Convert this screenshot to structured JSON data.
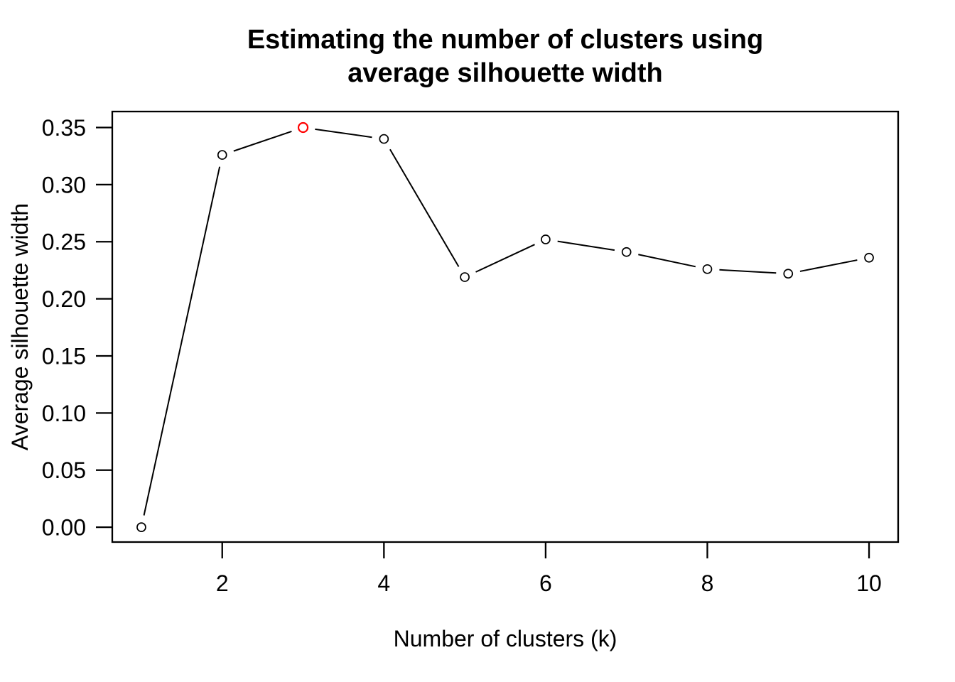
{
  "figure": {
    "title_line1": "Estimating the number of clusters using",
    "title_line2": "average silhouette width",
    "xlabel": "Number of clusters (k)",
    "ylabel": "Average silhouette width",
    "background_color": "#ffffff",
    "axis_color": "#000000"
  },
  "chart_data": {
    "type": "line",
    "title": "Estimating the number of clusters using average silhouette width",
    "xlabel": "Number of clusters (k)",
    "ylabel": "Average silhouette width",
    "x": [
      1,
      2,
      3,
      4,
      5,
      6,
      7,
      8,
      9,
      10
    ],
    "values": [
      0.0,
      0.326,
      0.35,
      0.34,
      0.219,
      0.252,
      0.241,
      0.226,
      0.222,
      0.236
    ],
    "xticks": [
      2,
      4,
      6,
      8,
      10
    ],
    "ytick_labels": [
      "0.00",
      "0.05",
      "0.10",
      "0.15",
      "0.20",
      "0.25",
      "0.30",
      "0.35"
    ],
    "xlim": [
      0.64,
      10.36
    ],
    "ylim": [
      -0.013,
      0.364
    ],
    "grid": false,
    "legend": "none",
    "marker": "open-circle",
    "line_style": "points-joined-by-segments-with-gaps",
    "line_color": "#000000",
    "point_color": "#000000",
    "highlight": {
      "x": 3,
      "value": 0.35,
      "color": "#ff0000"
    }
  }
}
